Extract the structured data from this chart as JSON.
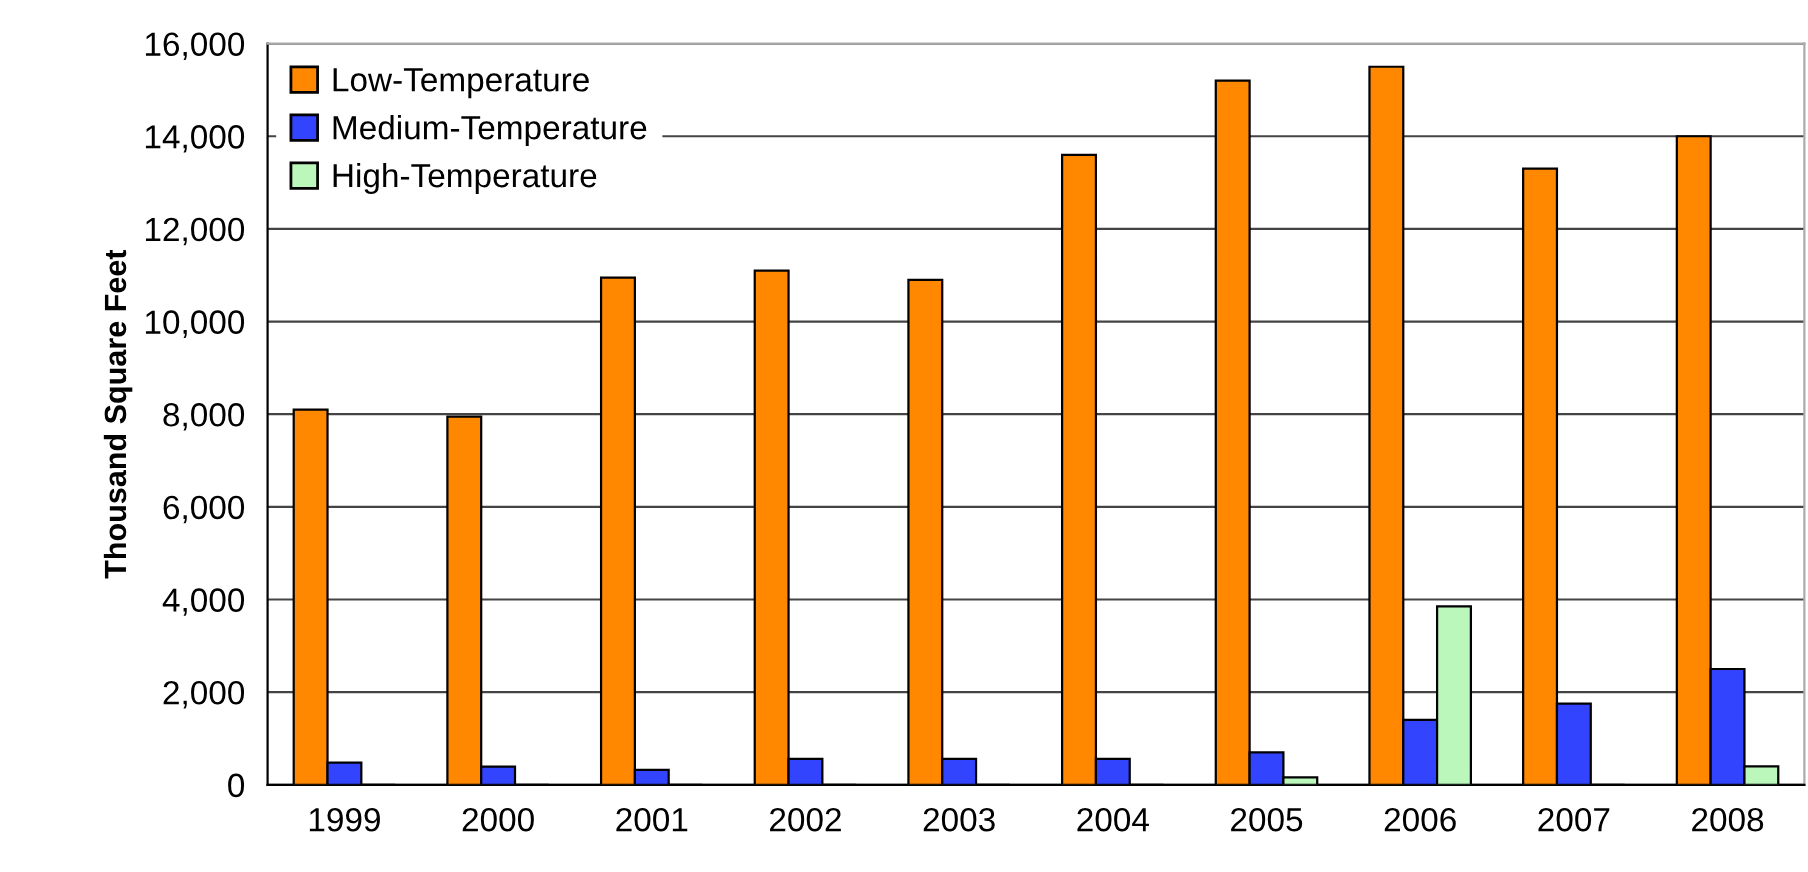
{
  "chart_data": {
    "type": "bar",
    "ylabel": "Thousand Square Feet",
    "categories": [
      "1999",
      "2000",
      "2001",
      "2002",
      "2003",
      "2004",
      "2005",
      "2006",
      "2007",
      "2008"
    ],
    "series": [
      {
        "name": "Low-Temperature",
        "color": "#ff8800",
        "values": [
          8100,
          7950,
          10950,
          11100,
          10900,
          13600,
          15200,
          15500,
          13300,
          14000
        ]
      },
      {
        "name": "Medium-Temperature",
        "color": "#3344ff",
        "values": [
          480,
          390,
          320,
          560,
          560,
          560,
          700,
          1400,
          1750,
          2500
        ]
      },
      {
        "name": "High-Temperature",
        "color": "#bbf7bb",
        "values": [
          0,
          0,
          0,
          0,
          0,
          0,
          160,
          3850,
          0,
          400
        ]
      }
    ],
    "ylim": [
      0,
      16000
    ],
    "yticks": [
      {
        "value": 0,
        "label": "0"
      },
      {
        "value": 2000,
        "label": "2,000"
      },
      {
        "value": 4000,
        "label": "4,000"
      },
      {
        "value": 6000,
        "label": "6,000"
      },
      {
        "value": 8000,
        "label": "8,000"
      },
      {
        "value": 10000,
        "label": "10,000"
      },
      {
        "value": 12000,
        "label": "12,000"
      },
      {
        "value": 14000,
        "label": "14,000"
      },
      {
        "value": 16000,
        "label": "16,000"
      }
    ],
    "grid": "y",
    "legend": "top left"
  }
}
